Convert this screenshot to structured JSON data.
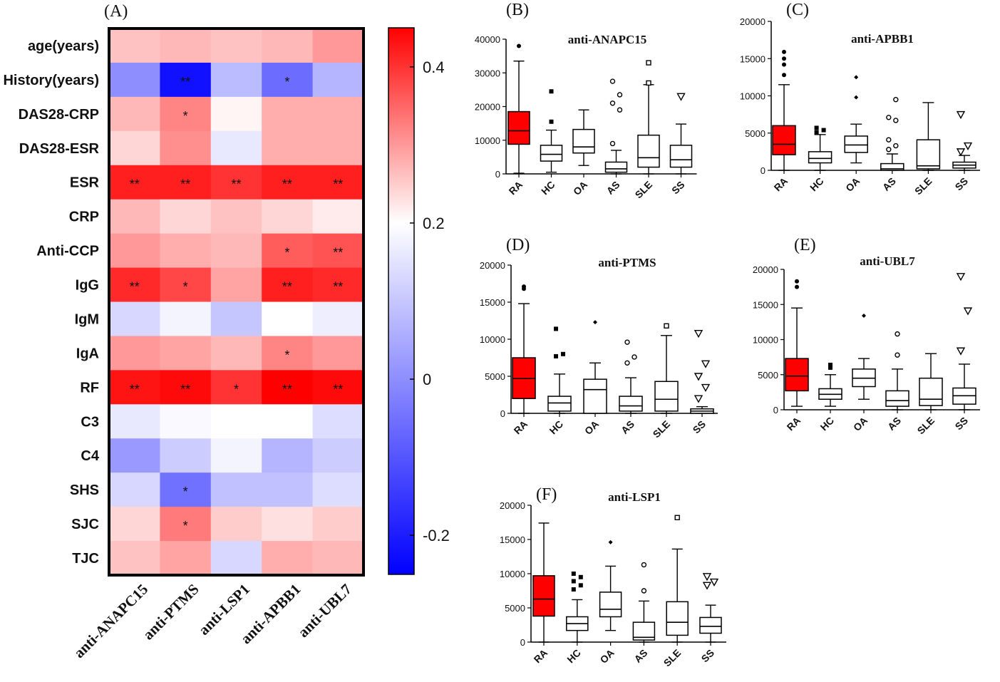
{
  "chart_data": [
    {
      "panel": "(A)",
      "type": "heatmap",
      "rows": [
        "age(years)",
        "History(years)",
        "DAS28-CRP",
        "DAS28-ESR",
        "ESR",
        "CRP",
        "Anti-CCP",
        "IgG",
        "IgM",
        "IgA",
        "RF",
        "C3",
        "C4",
        "SHS",
        "SJC",
        "TJC"
      ],
      "columns": [
        "anti-ANAPC15",
        "anti-PTMS",
        "anti-LSP1",
        "anti-APBB1",
        "anti-UBL7"
      ],
      "values": [
        [
          0.26,
          0.27,
          0.26,
          0.27,
          0.3
        ],
        [
          0.0,
          -0.22,
          0.08,
          -0.06,
          0.07
        ],
        [
          0.27,
          0.32,
          0.21,
          0.28,
          0.28
        ],
        [
          0.24,
          0.31,
          0.16,
          0.28,
          0.28
        ],
        [
          0.42,
          0.42,
          0.4,
          0.42,
          0.42
        ],
        [
          0.27,
          0.24,
          0.26,
          0.24,
          0.22
        ],
        [
          0.3,
          0.28,
          0.27,
          0.36,
          0.37
        ],
        [
          0.41,
          0.38,
          0.29,
          0.42,
          0.41
        ],
        [
          0.13,
          0.18,
          0.1,
          0.2,
          0.17
        ],
        [
          0.3,
          0.29,
          0.27,
          0.32,
          0.3
        ],
        [
          0.43,
          0.44,
          0.4,
          0.45,
          0.44
        ],
        [
          0.16,
          0.19,
          0.2,
          0.2,
          0.14
        ],
        [
          0.02,
          0.11,
          0.18,
          0.07,
          0.11
        ],
        [
          0.13,
          -0.05,
          0.09,
          0.09,
          0.14
        ],
        [
          0.24,
          0.33,
          0.25,
          0.23,
          0.25
        ],
        [
          0.26,
          0.29,
          0.13,
          0.28,
          0.27
        ]
      ],
      "significance": [
        [
          "",
          "",
          "",
          "",
          ""
        ],
        [
          "",
          "**",
          "",
          "*",
          ""
        ],
        [
          "",
          "*",
          "",
          "",
          ""
        ],
        [
          "",
          "",
          "",
          "",
          ""
        ],
        [
          "**",
          "**",
          "**",
          "**",
          "**"
        ],
        [
          "",
          "",
          "",
          "",
          ""
        ],
        [
          "",
          "",
          "",
          "*",
          "**"
        ],
        [
          "**",
          "*",
          "",
          "**",
          "**"
        ],
        [
          "",
          "",
          "",
          "",
          ""
        ],
        [
          "",
          "",
          "",
          "*",
          ""
        ],
        [
          "**",
          "**",
          "*",
          "**",
          "**"
        ],
        [
          "",
          "",
          "",
          "",
          ""
        ],
        [
          "",
          "",
          "",
          "",
          ""
        ],
        [
          "",
          "*",
          "",
          "",
          ""
        ],
        [
          "",
          "*",
          "",
          "",
          ""
        ],
        [
          "",
          "",
          "",
          "",
          ""
        ]
      ],
      "colorbar": {
        "min": -0.25,
        "max": 0.45,
        "center": 0.2,
        "ticks": [
          "0.4",
          "0.2",
          "0",
          "-0.2"
        ],
        "tick_values": [
          0.4,
          0.2,
          0,
          -0.2
        ],
        "colors": {
          "low": "#0000ff",
          "mid": "#ffffff",
          "high": "#ff0000"
        }
      }
    },
    {
      "panel": "(B)",
      "type": "box",
      "title": "anti-ANAPC15",
      "categories": [
        "RA",
        "HC",
        "OA",
        "AS",
        "SLE",
        "SS"
      ],
      "ylim": [
        0,
        40000
      ],
      "yticks": [
        "0",
        "10000",
        "20000",
        "30000",
        "40000"
      ],
      "ytick_values": [
        0,
        10000,
        20000,
        30000,
        40000
      ],
      "boxes": [
        {
          "q1": 8800,
          "median": 12800,
          "q3": 18500,
          "lo": 200,
          "hi": 33500,
          "out": [
            38000
          ],
          "marker": "circle",
          "fill": "#ff0000"
        },
        {
          "q1": 3800,
          "median": 5800,
          "q3": 8500,
          "lo": 500,
          "hi": 13000,
          "out": [
            15500,
            24500
          ],
          "marker": "square",
          "fill": "#ffffff"
        },
        {
          "q1": 6200,
          "median": 8000,
          "q3": 13200,
          "lo": 2500,
          "hi": 19000,
          "out": [],
          "marker": "diamond",
          "fill": "#ffffff"
        },
        {
          "q1": 500,
          "median": 1500,
          "q3": 3500,
          "lo": 0,
          "hi": 7000,
          "out": [
            9000,
            19000,
            21000,
            23500,
            27500
          ],
          "marker": "open-circle",
          "fill": "#ffffff"
        },
        {
          "q1": 2000,
          "median": 4800,
          "q3": 11500,
          "lo": 0,
          "hi": 26500,
          "out": [
            27000,
            33000
          ],
          "marker": "open-square",
          "fill": "#ffffff"
        },
        {
          "q1": 2000,
          "median": 4200,
          "q3": 8500,
          "lo": 0,
          "hi": 14800,
          "out": [
            23000
          ],
          "marker": "triangle",
          "fill": "#ffffff"
        }
      ]
    },
    {
      "panel": "(C)",
      "type": "box",
      "title": "anti-APBB1",
      "categories": [
        "RA",
        "HC",
        "OA",
        "AS",
        "SLE",
        "SS"
      ],
      "ylim": [
        0,
        20000
      ],
      "yticks": [
        "0",
        "5000",
        "10000",
        "15000",
        "20000"
      ],
      "ytick_values": [
        0,
        5000,
        10000,
        15000,
        20000
      ],
      "boxes": [
        {
          "q1": 2100,
          "median": 3500,
          "q3": 6000,
          "lo": 0,
          "hi": 11500,
          "out": [
            12800,
            14200,
            15000,
            15900
          ],
          "marker": "circle",
          "fill": "#ff0000"
        },
        {
          "q1": 1000,
          "median": 1600,
          "q3": 2500,
          "lo": 0,
          "hi": 4800,
          "out": [
            5100,
            5400,
            5700
          ],
          "marker": "square",
          "fill": "#ffffff"
        },
        {
          "q1": 2400,
          "median": 3400,
          "q3": 4600,
          "lo": 1000,
          "hi": 6200,
          "out": [
            9800,
            12500
          ],
          "marker": "diamond",
          "fill": "#ffffff"
        },
        {
          "q1": 0,
          "median": 200,
          "q3": 900,
          "lo": 0,
          "hi": 2200,
          "out": [
            2800,
            3300,
            4100,
            6700,
            7100,
            9500
          ],
          "marker": "open-circle",
          "fill": "#ffffff"
        },
        {
          "q1": 200,
          "median": 600,
          "q3": 4100,
          "lo": 0,
          "hi": 9100,
          "out": [],
          "marker": "open-square",
          "fill": "#ffffff"
        },
        {
          "q1": 300,
          "median": 700,
          "q3": 1100,
          "lo": 0,
          "hi": 2000,
          "out": [
            2500,
            3300,
            7500
          ],
          "marker": "triangle",
          "fill": "#ffffff"
        }
      ]
    },
    {
      "panel": "(D)",
      "type": "box",
      "title": "anti-PTMS",
      "categories": [
        "RA",
        "HC",
        "OA",
        "AS",
        "SLE",
        "SS"
      ],
      "ylim": [
        0,
        20000
      ],
      "yticks": [
        "0",
        "5000",
        "10000",
        "15000",
        "20000"
      ],
      "ytick_values": [
        0,
        5000,
        10000,
        15000,
        20000
      ],
      "boxes": [
        {
          "q1": 2000,
          "median": 4700,
          "q3": 7500,
          "lo": 0,
          "hi": 14800,
          "out": [
            16800,
            17100
          ],
          "marker": "circle",
          "fill": "#ff0000"
        },
        {
          "q1": 300,
          "median": 1400,
          "q3": 2300,
          "lo": 0,
          "hi": 5300,
          "out": [
            7700,
            8000,
            11400
          ],
          "marker": "square",
          "fill": "#ffffff"
        },
        {
          "q1": 0,
          "median": 3200,
          "q3": 4600,
          "lo": 0,
          "hi": 6800,
          "out": [
            12300
          ],
          "marker": "diamond",
          "fill": "#ffffff"
        },
        {
          "q1": 300,
          "median": 1000,
          "q3": 2300,
          "lo": 0,
          "hi": 4800,
          "out": [
            6800,
            7600,
            9600
          ],
          "marker": "open-circle",
          "fill": "#ffffff"
        },
        {
          "q1": 300,
          "median": 1900,
          "q3": 4300,
          "lo": 0,
          "hi": 10500,
          "out": [
            11800
          ],
          "marker": "open-square",
          "fill": "#ffffff"
        },
        {
          "q1": 0,
          "median": 300,
          "q3": 600,
          "lo": 0,
          "hi": 900,
          "out": [
            2000,
            3500,
            5000,
            6700,
            10800
          ],
          "marker": "triangle",
          "fill": "#ffffff"
        }
      ]
    },
    {
      "panel": "(E)",
      "type": "box",
      "title": "anti-UBL7",
      "categories": [
        "RA",
        "HC",
        "OA",
        "AS",
        "SLE",
        "SS"
      ],
      "ylim": [
        0,
        20000
      ],
      "yticks": [
        "0",
        "5000",
        "10000",
        "15000",
        "20000"
      ],
      "ytick_values": [
        0,
        5000,
        10000,
        15000,
        20000
      ],
      "boxes": [
        {
          "q1": 2700,
          "median": 4800,
          "q3": 7300,
          "lo": 500,
          "hi": 14500,
          "out": [
            17500,
            18300
          ],
          "marker": "circle",
          "fill": "#ff0000"
        },
        {
          "q1": 1500,
          "median": 2200,
          "q3": 3000,
          "lo": 500,
          "hi": 5000,
          "out": [
            6000,
            6400
          ],
          "marker": "square",
          "fill": "#ffffff"
        },
        {
          "q1": 3300,
          "median": 4500,
          "q3": 5800,
          "lo": 1500,
          "hi": 7300,
          "out": [
            13400
          ],
          "marker": "diamond",
          "fill": "#ffffff"
        },
        {
          "q1": 500,
          "median": 1300,
          "q3": 2700,
          "lo": 0,
          "hi": 5800,
          "out": [
            7800,
            10800
          ],
          "marker": "open-circle",
          "fill": "#ffffff"
        },
        {
          "q1": 600,
          "median": 1500,
          "q3": 4500,
          "lo": 0,
          "hi": 8000,
          "out": [],
          "marker": "open-square",
          "fill": "#ffffff"
        },
        {
          "q1": 800,
          "median": 2000,
          "q3": 3100,
          "lo": 0,
          "hi": 6500,
          "out": [
            8400,
            14100,
            19000
          ],
          "marker": "triangle",
          "fill": "#ffffff"
        }
      ]
    },
    {
      "panel": "(F)",
      "type": "box",
      "title": "anti-LSP1",
      "categories": [
        "RA",
        "HC",
        "OA",
        "AS",
        "SLE",
        "SS"
      ],
      "ylim": [
        0,
        20000
      ],
      "yticks": [
        "0",
        "5000",
        "10000",
        "15000",
        "20000"
      ],
      "ytick_values": [
        0,
        5000,
        10000,
        15000,
        20000
      ],
      "boxes": [
        {
          "q1": 3800,
          "median": 6300,
          "q3": 9700,
          "lo": 0,
          "hi": 17400,
          "out": [],
          "marker": "circle",
          "fill": "#ff0000"
        },
        {
          "q1": 1700,
          "median": 2700,
          "q3": 3700,
          "lo": 0,
          "hi": 6200,
          "out": [
            7700,
            8300,
            8900,
            9500,
            10000
          ],
          "marker": "square",
          "fill": "#ffffff"
        },
        {
          "q1": 3700,
          "median": 4800,
          "q3": 7300,
          "lo": 1700,
          "hi": 11100,
          "out": [
            14600
          ],
          "marker": "diamond",
          "fill": "#ffffff"
        },
        {
          "q1": 300,
          "median": 700,
          "q3": 2900,
          "lo": 0,
          "hi": 6000,
          "out": [
            7500,
            11300
          ],
          "marker": "open-circle",
          "fill": "#ffffff"
        },
        {
          "q1": 1000,
          "median": 2900,
          "q3": 5900,
          "lo": 0,
          "hi": 13600,
          "out": [
            18200
          ],
          "marker": "open-square",
          "fill": "#ffffff"
        },
        {
          "q1": 1300,
          "median": 2300,
          "q3": 3600,
          "lo": 0,
          "hi": 5400,
          "out": [
            8300,
            8800,
            9600
          ],
          "marker": "triangle",
          "fill": "#ffffff"
        }
      ]
    }
  ]
}
